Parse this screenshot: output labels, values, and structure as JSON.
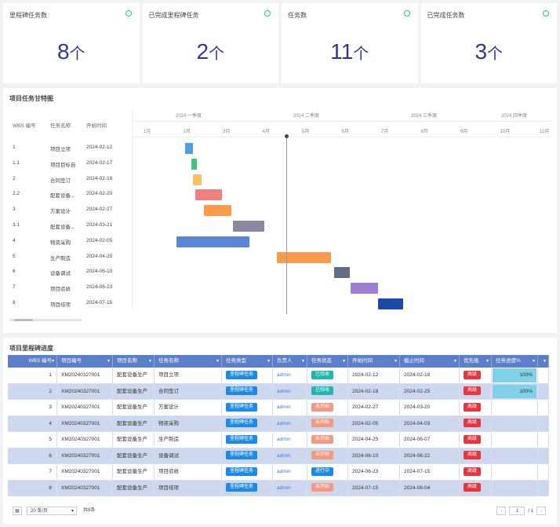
{
  "cards": [
    {
      "title": "里程碑任务数",
      "value": "8",
      "unit": "个"
    },
    {
      "title": "已完成里程碑任务",
      "value": "2",
      "unit": "个"
    },
    {
      "title": "任务数",
      "value": "11",
      "unit": "个"
    },
    {
      "title": "已完成任务数",
      "value": "3",
      "unit": "个"
    }
  ],
  "gantt": {
    "title": "项目任务甘特图",
    "headers": {
      "wbs": "WBS 编号",
      "name": "任务名称",
      "start": "开始时间"
    },
    "quarters": [
      "2024 一季度",
      "2024 二季度",
      "2024 三季度",
      "2024 四季度"
    ],
    "months": [
      "1月",
      "2月",
      "3月",
      "4月",
      "5月",
      "6月",
      "7月",
      "8月",
      "9月",
      "10月",
      "11月"
    ],
    "tasks": [
      {
        "wbs": "1",
        "name": "项目立项",
        "start": "2024-02-12",
        "bar_start": "2024-02-12",
        "bar_end": "2024-02-18",
        "color": "#4a9fe8"
      },
      {
        "wbs": "1.1",
        "name": "项目目标自",
        "start": "2024-02-17",
        "bar_start": "2024-02-17",
        "bar_end": "2024-02-21",
        "color": "#3dc47e"
      },
      {
        "wbs": "2",
        "name": "合同签订",
        "start": "2024-02-18",
        "bar_start": "2024-02-18",
        "bar_end": "2024-02-25",
        "color": "#f7c35c"
      },
      {
        "wbs": "2.2",
        "name": "配套设备...",
        "start": "2024-02-20",
        "bar_start": "2024-02-20",
        "bar_end": "2024-03-12",
        "color": "#f27f7f"
      },
      {
        "wbs": "3",
        "name": "方案设计",
        "start": "2024-02-27",
        "bar_start": "2024-02-27",
        "bar_end": "2024-03-20",
        "color": "#f99b4a"
      },
      {
        "wbs": "3.1",
        "name": "配套设备...",
        "start": "2024-03-21",
        "bar_start": "2024-03-21",
        "bar_end": "2024-04-15",
        "color": "#8a86a0"
      },
      {
        "wbs": "4",
        "name": "物资采购",
        "start": "2024-02-05",
        "bar_start": "2024-02-05",
        "bar_end": "2024-04-03",
        "color": "#5b86d8"
      },
      {
        "wbs": "5",
        "name": "生产制造",
        "start": "2024-04-25",
        "bar_start": "2024-04-25",
        "bar_end": "2024-06-07",
        "color": "#f99b4a"
      },
      {
        "wbs": "6",
        "name": "设备调试",
        "start": "2024-06-10",
        "bar_start": "2024-06-10",
        "bar_end": "2024-06-22",
        "color": "#5f6e86"
      },
      {
        "wbs": "7",
        "name": "项目验收",
        "start": "2024-06-23",
        "bar_start": "2024-06-23",
        "bar_end": "2024-07-15",
        "color": "#9c7fd2"
      },
      {
        "wbs": "8",
        "name": "项目结项",
        "start": "2024-07-15",
        "bar_start": "2024-07-15",
        "bar_end": "2024-08-04",
        "color": "#1d4aa8"
      }
    ]
  },
  "table": {
    "title": "项目里程碑进度",
    "columns": [
      "WBS 编号",
      "项目编号",
      "项目名称",
      "任务名称",
      "任务类型",
      "负责人",
      "任务状态",
      "开始时间",
      "截止时间",
      "优先级",
      "任务进度%"
    ],
    "rows": [
      {
        "index": "1",
        "code": "XM20240327001",
        "pname": "配套设备生产",
        "tname": "项目立项",
        "type": "里程碑任务",
        "owner": "admin",
        "status": "已验收",
        "status_color": "teal",
        "start": "2024-02-12",
        "end": "2024-02-18",
        "risk": "高级",
        "progress": "100%",
        "progress_value": 100
      },
      {
        "index": "2",
        "code": "XM20240327001",
        "pname": "配套设备生产",
        "tname": "合同签订",
        "type": "里程碑任务",
        "owner": "admin",
        "status": "已验收",
        "status_color": "teal",
        "start": "2024-02-18",
        "end": "2024-02-25",
        "risk": "高级",
        "progress": "100%",
        "progress_value": 100
      },
      {
        "index": "3",
        "code": "XM20240327001",
        "pname": "配套设备生产",
        "tname": "方案设计",
        "type": "里程碑任务",
        "owner": "admin",
        "status": "未开始",
        "status_color": "salmon",
        "start": "2024-02-27",
        "end": "2024-03-20",
        "risk": "高级",
        "progress": "",
        "progress_value": 0
      },
      {
        "index": "4",
        "code": "XM20240327001",
        "pname": "配套设备生产",
        "tname": "物资采购",
        "type": "里程碑任务",
        "owner": "admin",
        "status": "未开始",
        "status_color": "salmon",
        "start": "2024-02-05",
        "end": "2024-04-03",
        "risk": "高级",
        "progress": "",
        "progress_value": 0
      },
      {
        "index": "5",
        "code": "XM20240327001",
        "pname": "配套设备生产",
        "tname": "生产制造",
        "type": "里程碑任务",
        "owner": "admin",
        "status": "未开始",
        "status_color": "salmon",
        "start": "2024-04-25",
        "end": "2024-06-07",
        "risk": "高级",
        "progress": "",
        "progress_value": 0
      },
      {
        "index": "6",
        "code": "XM20240327001",
        "pname": "配套设备生产",
        "tname": "设备调试",
        "type": "里程碑任务",
        "owner": "admin",
        "status": "未开始",
        "status_color": "salmon",
        "start": "2024-06-10",
        "end": "2024-06-22",
        "risk": "高级",
        "progress": "",
        "progress_value": 0
      },
      {
        "index": "7",
        "code": "XM20240327001",
        "pname": "配套设备生产",
        "tname": "项目验收",
        "type": "里程碑任务",
        "owner": "admin",
        "status": "进行中",
        "status_color": "blue",
        "start": "2024-06-23",
        "end": "2024-07-15",
        "risk": "高级",
        "progress": "",
        "progress_value": 0
      },
      {
        "index": "8",
        "code": "XM20240327001",
        "pname": "配套设备生产",
        "tname": "项目结项",
        "type": "里程碑任务",
        "owner": "admin",
        "status": "未开始",
        "status_color": "salmon",
        "start": "2024-07-15",
        "end": "2024-08-04",
        "risk": "高级",
        "progress": "",
        "progress_value": 0
      }
    ],
    "footer": {
      "page_size": "20 条/页",
      "total": "共8条",
      "page": "1",
      "pages": "/ 1"
    }
  }
}
